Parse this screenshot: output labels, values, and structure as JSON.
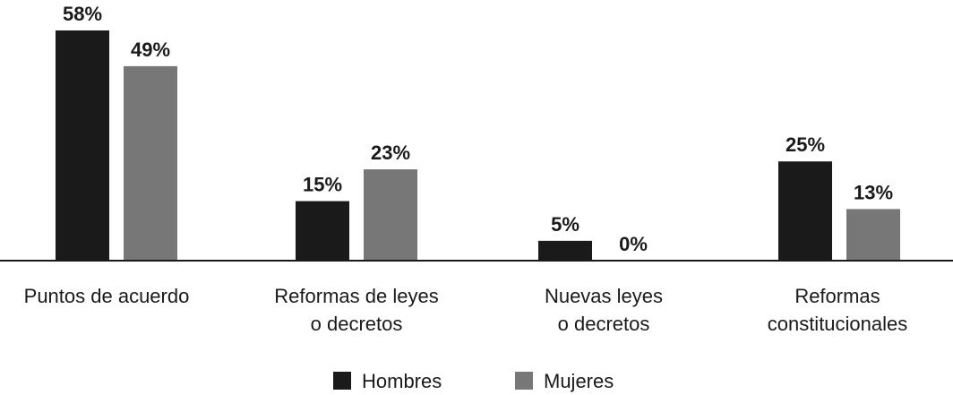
{
  "chart_data": {
    "type": "bar",
    "title": "",
    "xlabel": "",
    "ylabel": "",
    "ylim": [
      0,
      58
    ],
    "categories": [
      [
        "Puntos de acuerdo"
      ],
      [
        "Reformas de leyes",
        "o decretos"
      ],
      [
        "Nuevas leyes",
        "o decretos"
      ],
      [
        "Reformas",
        "constitucionales"
      ]
    ],
    "series": [
      {
        "name": "Hombres",
        "color": "#1a1a1a",
        "values": [
          58,
          15,
          5,
          25
        ],
        "labels": [
          "58%",
          "15%",
          "5%",
          "25%"
        ]
      },
      {
        "name": "Mujeres",
        "color": "#777777",
        "values": [
          49,
          23,
          0,
          13
        ],
        "labels": [
          "49%",
          "23%",
          "0%",
          "13%"
        ]
      }
    ],
    "legend": "bottom-center",
    "grid": false
  }
}
